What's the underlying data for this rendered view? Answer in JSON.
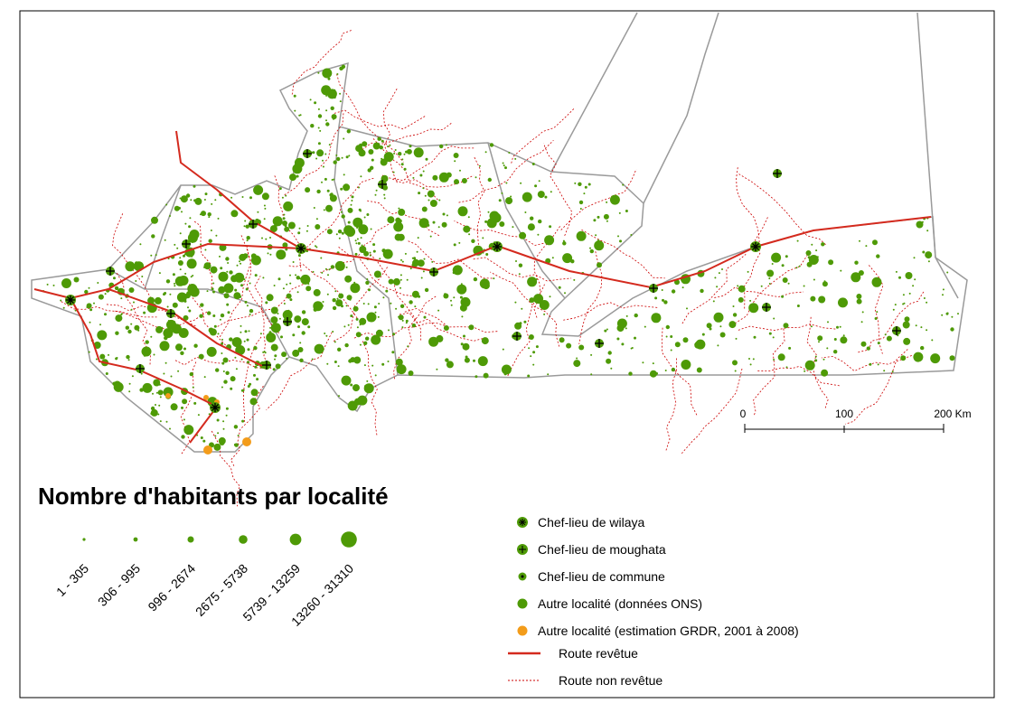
{
  "title": "Nombre d'habitants par localité",
  "size_classes": [
    "1 - 305",
    "306 - 995",
    "996 - 2674",
    "2675 - 5738",
    "5739 - 13259",
    "13260 - 31310"
  ],
  "symbol_legend": [
    "Chef-lieu de wilaya",
    "Chef-lieu de moughata",
    "Chef-lieu de commune",
    "Autre localité (données ONS)",
    "Autre localité (estimation GRDR, 2001 à 2008)",
    "Route revêtue",
    "Route non revêtue"
  ],
  "scale_bar": [
    "0",
    "100",
    "200 Km"
  ]
}
